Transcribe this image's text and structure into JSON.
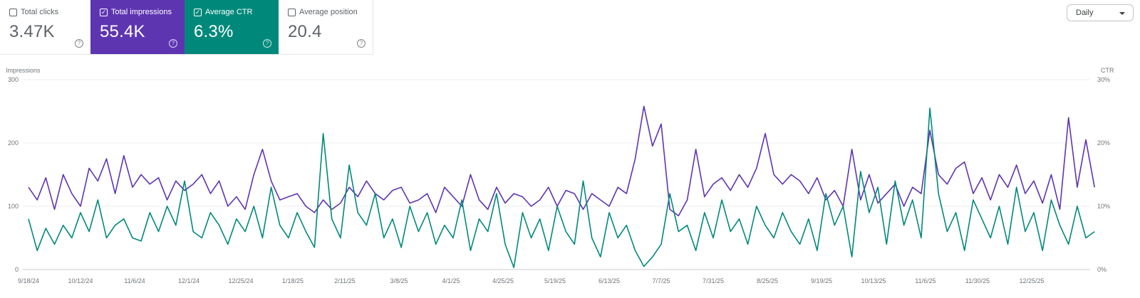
{
  "metrics": [
    {
      "label": "Total clicks",
      "value": "3.47K",
      "checked": false,
      "color": null
    },
    {
      "label": "Total impressions",
      "value": "55.4K",
      "checked": true,
      "color": "#5e35b1"
    },
    {
      "label": "Average CTR",
      "value": "6.3%",
      "checked": true,
      "color": "#00897b"
    },
    {
      "label": "Average position",
      "value": "20.4",
      "checked": false,
      "color": null
    }
  ],
  "help_icon": "?",
  "granularity": {
    "label": "Daily"
  },
  "chart_data": {
    "type": "line",
    "y_left": {
      "label": "Impressions",
      "ticks": [
        "300",
        "200",
        "100",
        "0"
      ],
      "range": [
        0,
        300
      ]
    },
    "y_right": {
      "label": "CTR",
      "ticks": [
        "30%",
        "20%",
        "10%",
        "0%"
      ],
      "range": [
        0,
        30
      ]
    },
    "x_ticks": [
      {
        "label": "9/18/24",
        "date": "2024-09-18"
      },
      {
        "label": "10/12/24",
        "date": "2024-10-12"
      },
      {
        "label": "11/6/24",
        "date": "2024-11-06"
      },
      {
        "label": "12/1/24",
        "date": "2024-12-01"
      },
      {
        "label": "12/25/24",
        "date": "2024-12-25"
      },
      {
        "label": "1/18/25",
        "date": "2025-01-18"
      },
      {
        "label": "2/11/25",
        "date": "2025-02-11"
      },
      {
        "label": "3/8/25",
        "date": "2025-03-08"
      },
      {
        "label": "4/1/25",
        "date": "2025-04-01"
      },
      {
        "label": "4/25/25",
        "date": "2025-04-25"
      },
      {
        "label": "5/19/25",
        "date": "2025-05-19"
      },
      {
        "label": "6/13/25",
        "date": "2025-06-13"
      },
      {
        "label": "7/7/25",
        "date": "2025-07-07"
      },
      {
        "label": "7/31/25",
        "date": "2025-07-31"
      },
      {
        "label": "8/25/25",
        "date": "2025-08-25"
      },
      {
        "label": "9/19/25",
        "date": "2025-09-19"
      },
      {
        "label": "10/13/25",
        "date": "2025-10-13"
      },
      {
        "label": "11/6/25",
        "date": "2025-11-06"
      },
      {
        "label": "11/30/25",
        "date": "2025-11-30"
      },
      {
        "label": "12/25/25",
        "date": "2025-12-25"
      }
    ],
    "x_start": "2024-09-18",
    "x_step_days": 4,
    "grid": true,
    "series": [
      {
        "name": "Impressions",
        "axis": "left",
        "color": "#5e35b1",
        "values": [
          130,
          110,
          145,
          95,
          150,
          120,
          100,
          160,
          140,
          175,
          120,
          180,
          130,
          150,
          135,
          145,
          110,
          140,
          125,
          135,
          150,
          120,
          140,
          100,
          115,
          95,
          150,
          190,
          140,
          110,
          115,
          120,
          100,
          90,
          110,
          95,
          105,
          130,
          115,
          140,
          120,
          110,
          125,
          130,
          105,
          110,
          120,
          90,
          130,
          115,
          100,
          150,
          110,
          95,
          130,
          105,
          120,
          115,
          100,
          110,
          130,
          100,
          125,
          120,
          95,
          120,
          110,
          100,
          130,
          120,
          175,
          258,
          195,
          230,
          95,
          85,
          110,
          190,
          115,
          135,
          145,
          125,
          150,
          130,
          160,
          215,
          150,
          135,
          150,
          140,
          120,
          145,
          110,
          125,
          100,
          190,
          110,
          150,
          105,
          120,
          135,
          100,
          130,
          120,
          220,
          150,
          135,
          160,
          170,
          120,
          145,
          110,
          150,
          130,
          165,
          120,
          140,
          105,
          150,
          95,
          240,
          130,
          205,
          130
        ]
      },
      {
        "name": "CTR",
        "axis": "right",
        "color": "#00897b",
        "values": [
          8,
          3,
          6.5,
          4,
          7,
          5,
          9,
          6,
          11,
          5,
          7,
          8,
          5,
          4.5,
          9,
          6,
          10,
          7,
          14,
          6,
          5,
          9,
          7,
          4,
          8,
          6,
          10,
          5,
          13,
          7,
          5,
          9,
          6,
          3.5,
          21.5,
          8,
          5,
          16.5,
          9,
          7,
          12,
          5,
          8,
          3.5,
          10,
          6,
          9,
          4,
          7,
          5,
          11,
          3,
          8,
          6,
          12,
          4,
          0.3,
          9,
          5,
          8,
          3,
          10,
          6,
          4,
          14,
          5,
          2,
          9,
          5,
          7,
          3,
          0.5,
          2,
          4,
          12,
          6,
          7,
          3,
          9,
          5,
          11,
          6,
          8,
          4,
          10,
          7,
          5,
          9,
          6,
          4,
          8,
          3,
          12,
          7,
          10,
          2,
          15.5,
          9,
          13,
          4,
          14,
          7,
          11,
          5,
          25.5,
          12,
          6,
          9,
          3,
          11,
          8,
          5,
          10,
          4,
          13,
          6,
          9,
          3,
          11,
          7,
          4,
          10,
          5,
          6
        ]
      }
    ]
  }
}
